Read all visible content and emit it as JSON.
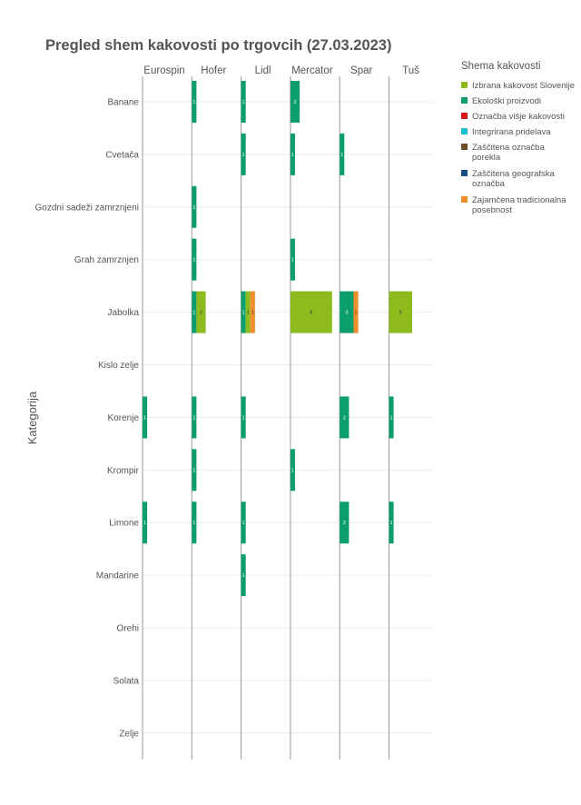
{
  "chart_data": {
    "type": "bar",
    "orientation": "horizontal",
    "stacked": true,
    "title": "Pregled shem kakovosti po trgovcih (27.03.2023)",
    "ylabel": "Kategorija",
    "xlabel": "",
    "facets": [
      "Eurospin",
      "Hofer",
      "Lidl",
      "Mercator",
      "Spar",
      "Tuš"
    ],
    "categories": [
      "Banane",
      "Cvetača",
      "Gozdni sadeži zamrznjeni",
      "Grah zamrznjen",
      "Jabolka",
      "Kislo zelje",
      "Korenje",
      "Krompir",
      "Limone",
      "Mandarine",
      "Orehi",
      "Solata",
      "Zelje"
    ],
    "legend": {
      "title": "Shema kakovosti",
      "position": "right",
      "items": [
        {
          "name": "Izbrana kakovost Slovenije",
          "color": "#8dbb1e"
        },
        {
          "name": "Ekološki proizvodi",
          "color": "#0c9f6c"
        },
        {
          "name": "Označba višje kakovosti",
          "color": "#d7191c"
        },
        {
          "name": "Integrirana pridelava",
          "color": "#17becf"
        },
        {
          "name": "Zaščitena označba porekla",
          "color": "#6b4f27"
        },
        {
          "name": "Zaščitena geografska označba",
          "color": "#1a4e86"
        },
        {
          "name": "Zajamčena tradicionalna posebnost",
          "color": "#f28e2b"
        }
      ]
    },
    "xlim": [
      0,
      9
    ],
    "grid": true,
    "data": [
      {
        "facet": "Hofer",
        "category": "Banane",
        "segments": [
          {
            "scheme": "Ekološki proizvodi",
            "value": 1
          }
        ]
      },
      {
        "facet": "Lidl",
        "category": "Banane",
        "segments": [
          {
            "scheme": "Ekološki proizvodi",
            "value": 1
          }
        ]
      },
      {
        "facet": "Mercator",
        "category": "Banane",
        "segments": [
          {
            "scheme": "Ekološki proizvodi",
            "value": 2
          }
        ]
      },
      {
        "facet": "Lidl",
        "category": "Cvetača",
        "segments": [
          {
            "scheme": "Ekološki proizvodi",
            "value": 1
          }
        ]
      },
      {
        "facet": "Mercator",
        "category": "Cvetača",
        "segments": [
          {
            "scheme": "Ekološki proizvodi",
            "value": 1
          }
        ]
      },
      {
        "facet": "Spar",
        "category": "Cvetača",
        "segments": [
          {
            "scheme": "Ekološki proizvodi",
            "value": 1
          }
        ]
      },
      {
        "facet": "Hofer",
        "category": "Gozdni sadeži zamrznjeni",
        "segments": [
          {
            "scheme": "Ekološki proizvodi",
            "value": 1
          }
        ]
      },
      {
        "facet": "Hofer",
        "category": "Grah zamrznjen",
        "segments": [
          {
            "scheme": "Ekološki proizvodi",
            "value": 1
          }
        ]
      },
      {
        "facet": "Mercator",
        "category": "Grah zamrznjen",
        "segments": [
          {
            "scheme": "Ekološki proizvodi",
            "value": 1
          }
        ]
      },
      {
        "facet": "Hofer",
        "category": "Jabolka",
        "segments": [
          {
            "scheme": "Ekološki proizvodi",
            "value": 1
          },
          {
            "scheme": "Izbrana kakovost Slovenije",
            "value": 2
          }
        ]
      },
      {
        "facet": "Lidl",
        "category": "Jabolka",
        "segments": [
          {
            "scheme": "Ekološki proizvodi",
            "value": 1
          },
          {
            "scheme": "Izbrana kakovost Slovenije",
            "value": 1
          },
          {
            "scheme": "Zajamčena tradicionalna posebnost",
            "value": 1
          }
        ]
      },
      {
        "facet": "Mercator",
        "category": "Jabolka",
        "segments": [
          {
            "scheme": "Izbrana kakovost Slovenije",
            "value": 9
          }
        ]
      },
      {
        "facet": "Spar",
        "category": "Jabolka",
        "segments": [
          {
            "scheme": "Ekološki proizvodi",
            "value": 3
          },
          {
            "scheme": "Zajamčena tradicionalna posebnost",
            "value": 1
          }
        ]
      },
      {
        "facet": "Tuš",
        "category": "Jabolka",
        "segments": [
          {
            "scheme": "Izbrana kakovost Slovenije",
            "value": 5
          }
        ]
      },
      {
        "facet": "Eurospin",
        "category": "Korenje",
        "segments": [
          {
            "scheme": "Ekološki proizvodi",
            "value": 1
          }
        ]
      },
      {
        "facet": "Hofer",
        "category": "Korenje",
        "segments": [
          {
            "scheme": "Ekološki proizvodi",
            "value": 1
          }
        ]
      },
      {
        "facet": "Lidl",
        "category": "Korenje",
        "segments": [
          {
            "scheme": "Ekološki proizvodi",
            "value": 1
          }
        ]
      },
      {
        "facet": "Spar",
        "category": "Korenje",
        "segments": [
          {
            "scheme": "Ekološki proizvodi",
            "value": 2
          }
        ]
      },
      {
        "facet": "Tuš",
        "category": "Korenje",
        "segments": [
          {
            "scheme": "Ekološki proizvodi",
            "value": 1
          }
        ]
      },
      {
        "facet": "Hofer",
        "category": "Krompir",
        "segments": [
          {
            "scheme": "Ekološki proizvodi",
            "value": 1
          }
        ]
      },
      {
        "facet": "Mercator",
        "category": "Krompir",
        "segments": [
          {
            "scheme": "Ekološki proizvodi",
            "value": 1
          }
        ]
      },
      {
        "facet": "Eurospin",
        "category": "Limone",
        "segments": [
          {
            "scheme": "Ekološki proizvodi",
            "value": 1
          }
        ]
      },
      {
        "facet": "Hofer",
        "category": "Limone",
        "segments": [
          {
            "scheme": "Ekološki proizvodi",
            "value": 1
          }
        ]
      },
      {
        "facet": "Lidl",
        "category": "Limone",
        "segments": [
          {
            "scheme": "Ekološki proizvodi",
            "value": 1
          }
        ]
      },
      {
        "facet": "Spar",
        "category": "Limone",
        "segments": [
          {
            "scheme": "Ekološki proizvodi",
            "value": 2
          }
        ]
      },
      {
        "facet": "Tuš",
        "category": "Limone",
        "segments": [
          {
            "scheme": "Ekološki proizvodi",
            "value": 1
          }
        ]
      },
      {
        "facet": "Lidl",
        "category": "Mandarine",
        "segments": [
          {
            "scheme": "Ekološki proizvodi",
            "value": 1
          }
        ]
      }
    ]
  }
}
